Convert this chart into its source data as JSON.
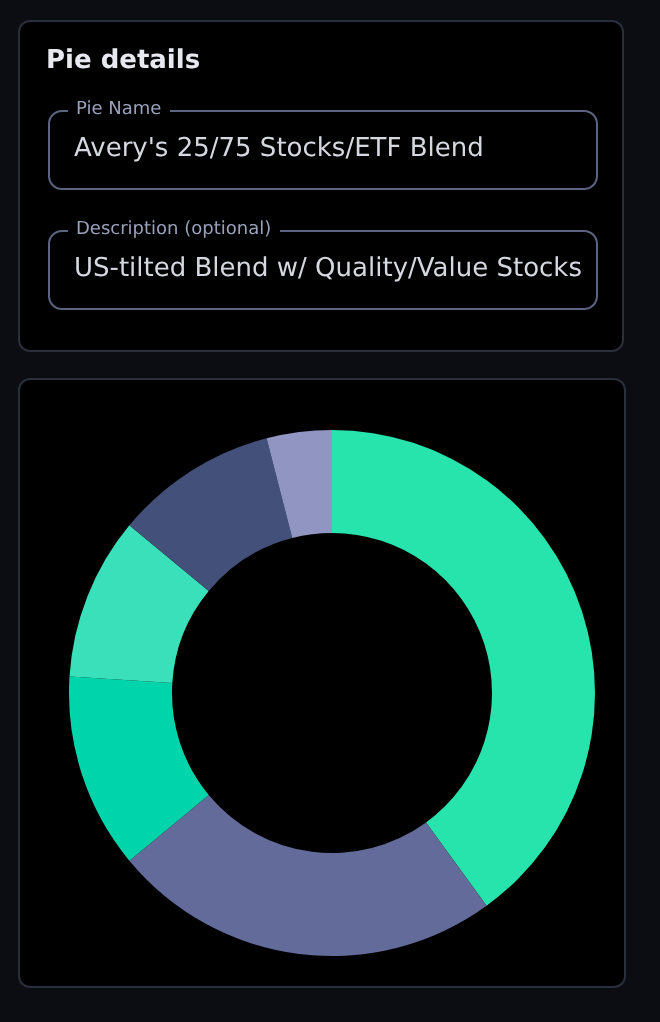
{
  "chart_data": [
    {
      "type": "other",
      "title": "Pie details",
      "annotations": [
        "Pie Name",
        "Avery's 25/75 Stocks/ETF Blend",
        "Description (optional)",
        "US-tilted Blend w/ Quality/Value Stocks"
      ]
    },
    {
      "type": "donut",
      "categories": [
        null,
        null,
        null,
        null,
        null,
        null
      ],
      "values": [
        40,
        24,
        12,
        10,
        10,
        4
      ],
      "colors": [
        "#27e4ad",
        "#626b9a",
        "#00d4aa",
        "#3ae0b9",
        "#43507a",
        "#9095c2"
      ],
      "legend": false
    }
  ]
}
